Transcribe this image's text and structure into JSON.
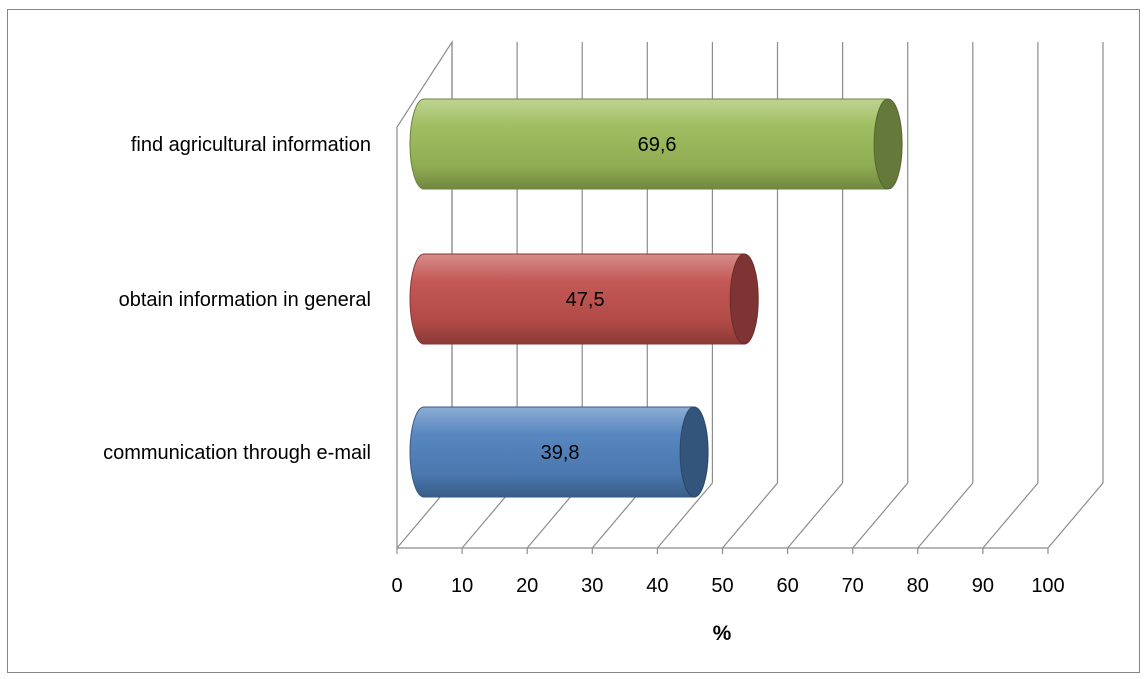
{
  "chart_data": {
    "type": "bar",
    "orientation": "horizontal",
    "style": "3d-cylinder",
    "categories": [
      "communication through e-mail",
      "obtain information in general",
      "find agricultural information"
    ],
    "values": [
      39.8,
      47.5,
      69.6
    ],
    "data_labels": [
      "39,8",
      "47,5",
      "69,6"
    ],
    "colors": [
      "#4f81bd",
      "#c0504d",
      "#9bbb59"
    ],
    "xlabel": "%",
    "xlim": [
      0,
      100
    ],
    "xticks": [
      "0",
      "10",
      "20",
      "30",
      "40",
      "50",
      "60",
      "70",
      "80",
      "90",
      "100"
    ],
    "grid": true,
    "legend": "none"
  }
}
